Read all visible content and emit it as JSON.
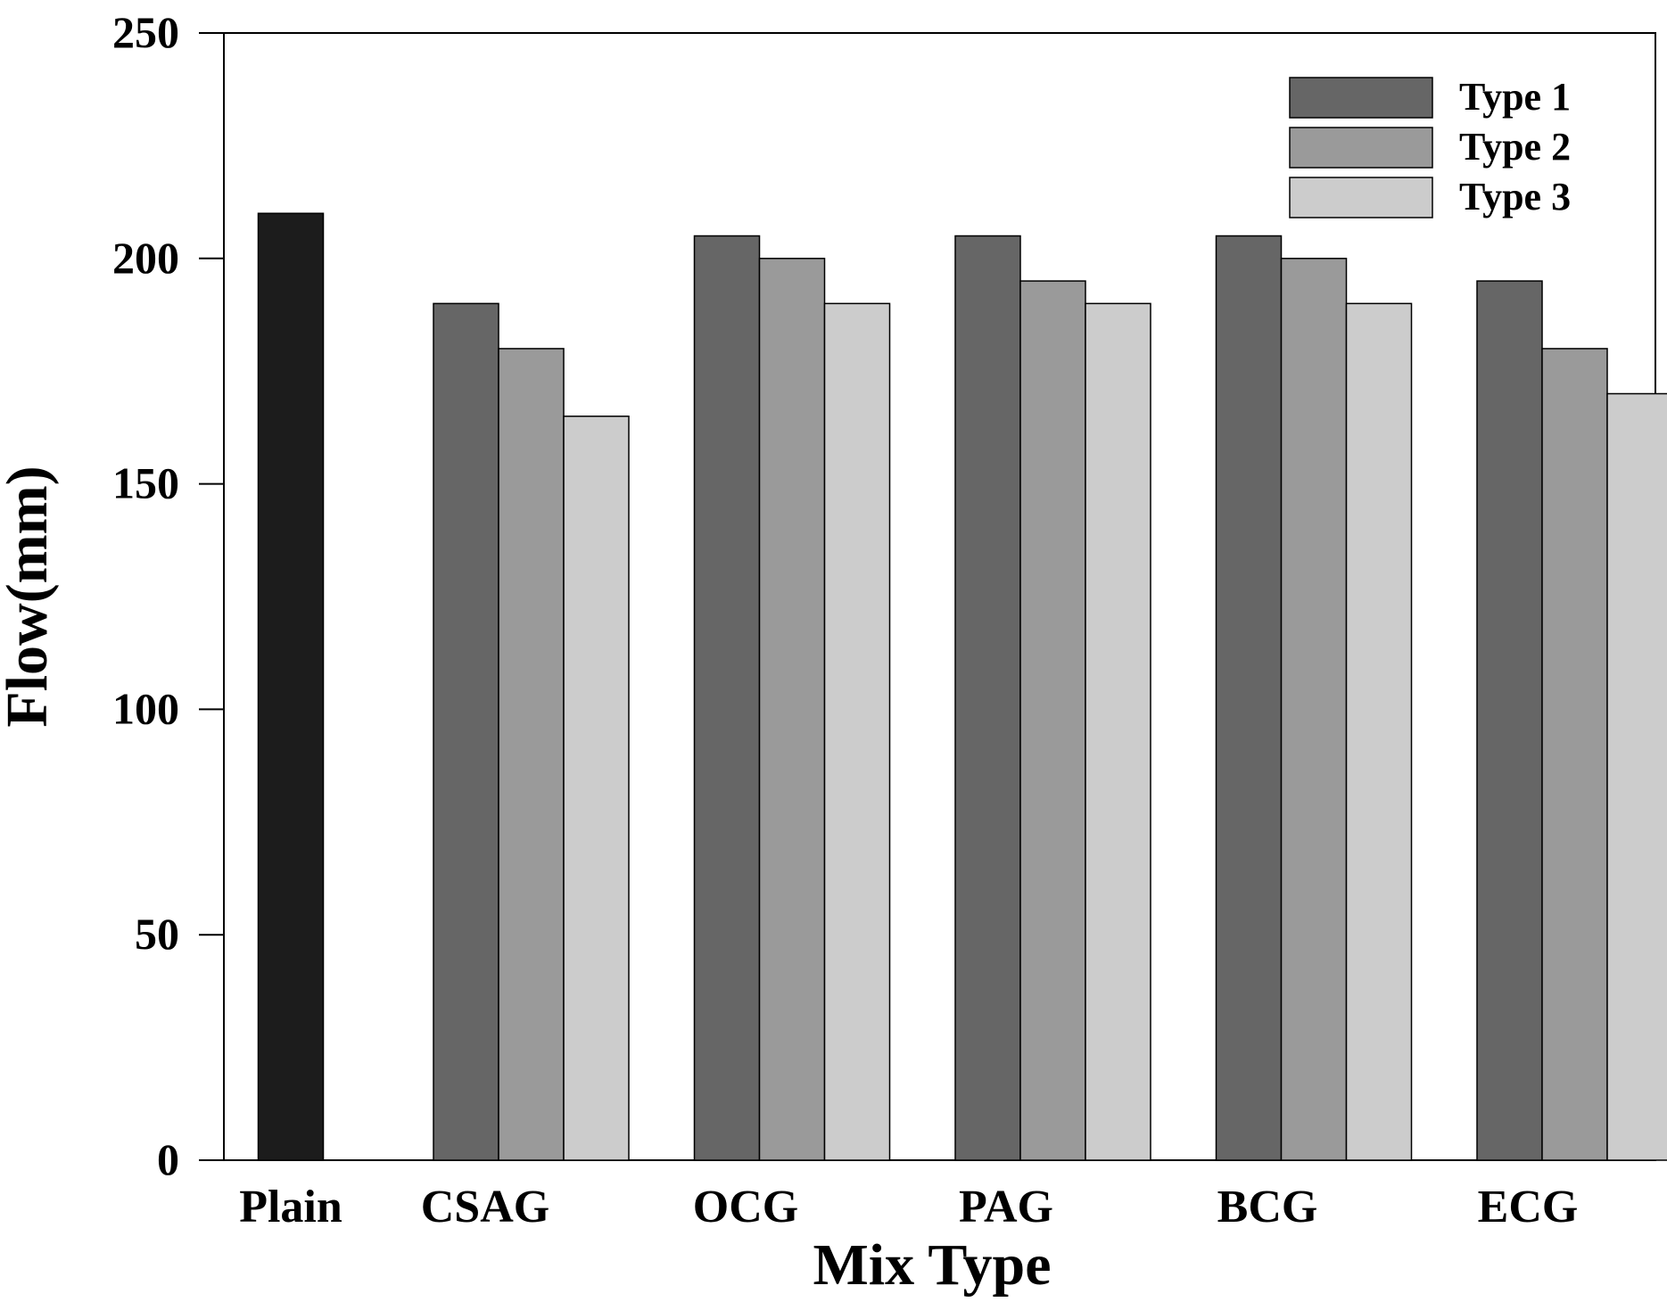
{
  "chart_data": {
    "type": "bar",
    "title": "",
    "xlabel": "Mix Type",
    "ylabel": "Flow(mm)",
    "ylim": [
      0,
      250
    ],
    "yticks": [
      0,
      50,
      100,
      150,
      200,
      250
    ],
    "grid": false,
    "legend_position": "top-right",
    "categories": [
      "Plain",
      "CSAG",
      "OCG",
      "PAG",
      "BCG",
      "ECG"
    ],
    "plain": {
      "label": "Plain",
      "value": 210,
      "color": "#1c1c1c"
    },
    "series": [
      {
        "name": "Type 1",
        "color": "#666666",
        "values": [
          null,
          190,
          205,
          205,
          205,
          195
        ]
      },
      {
        "name": "Type 2",
        "color": "#9a9a9a",
        "values": [
          null,
          180,
          200,
          195,
          200,
          180
        ]
      },
      {
        "name": "Type 3",
        "color": "#cccccc",
        "values": [
          null,
          165,
          190,
          190,
          190,
          170
        ]
      }
    ]
  }
}
